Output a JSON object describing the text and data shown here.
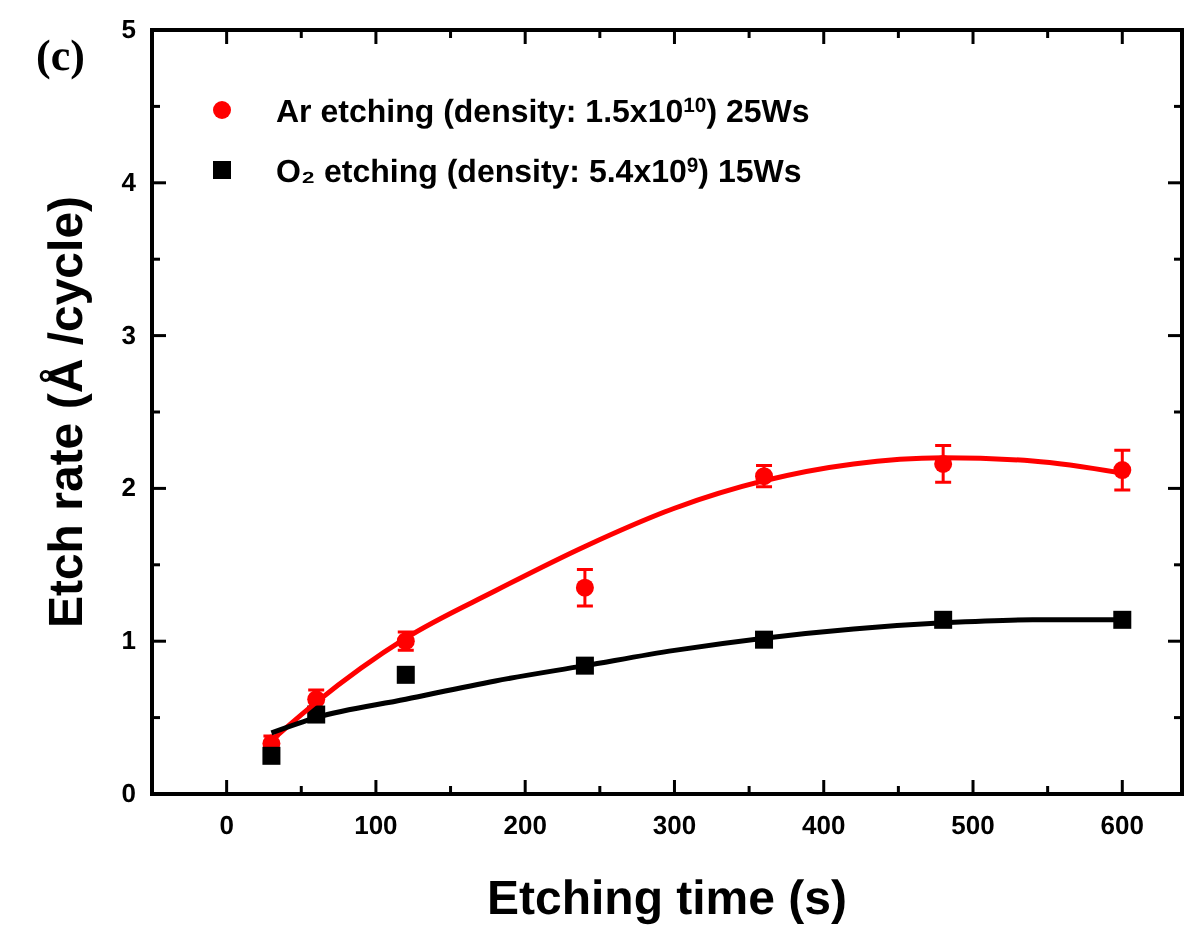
{
  "chart_data": {
    "type": "scatter",
    "title": "(c)",
    "xlabel": "Etching time (s)",
    "ylabel": "Etch rate (Å /cycle)",
    "xlim": [
      -50,
      640
    ],
    "ylim": [
      0,
      5
    ],
    "xticks": [
      0,
      {
        "value": 50,
        "label": null
      },
      100,
      {
        "value": 150,
        "label": null
      },
      200,
      {
        "value": 250,
        "label": null
      },
      300,
      {
        "value": 350,
        "label": null
      },
      400,
      {
        "value": 450,
        "label": null
      },
      500,
      {
        "value": 550,
        "label": null
      },
      600
    ],
    "yticks": [
      0,
      {
        "value": 0.5,
        "label": null
      },
      1,
      {
        "value": 1.5,
        "label": null
      },
      2,
      {
        "value": 2.5,
        "label": null
      },
      3,
      {
        "value": 3.5,
        "label": null
      },
      4,
      {
        "value": 4.5,
        "label": null
      },
      5
    ],
    "grid": false,
    "legend": "top left",
    "series": [
      {
        "name": "Ar etching (density: 1.5x10$^{10}$) 25Ws",
        "marker": "circle",
        "color": "#ff0000",
        "x": [
          30,
          60,
          120,
          240,
          360,
          480,
          600
        ],
        "values": [
          0.33,
          0.62,
          1.0,
          1.35,
          2.08,
          2.16,
          2.12
        ],
        "errors": [
          0.05,
          0.06,
          0.06,
          0.12,
          0.07,
          0.12,
          0.13
        ]
      },
      {
        "name": "O₂ etching (density: 5.4x10$^{9}$) 15Ws",
        "marker": "square",
        "color": "#000000",
        "x": [
          30,
          60,
          120,
          240,
          360,
          480,
          600
        ],
        "values": [
          0.25,
          0.52,
          0.78,
          0.84,
          1.01,
          1.14,
          1.14
        ]
      },
      {
        "type": "line",
        "marker": "none",
        "line_style": "solid",
        "color": "#ff0000",
        "x": [
          30,
          60,
          120,
          180,
          240,
          300,
          360,
          420,
          480,
          540,
          600
        ],
        "values": [
          0.35,
          0.6,
          1.02,
          1.33,
          1.62,
          1.87,
          2.05,
          2.16,
          2.2,
          2.18,
          2.1
        ]
      },
      {
        "type": "line",
        "marker": "none",
        "line_style": "solid",
        "color": "#000000",
        "x": [
          30,
          60,
          120,
          180,
          240,
          300,
          360,
          420,
          480,
          540,
          600
        ],
        "values": [
          0.4,
          0.5,
          0.62,
          0.74,
          0.84,
          0.94,
          1.02,
          1.08,
          1.12,
          1.14,
          1.14
        ]
      }
    ]
  }
}
